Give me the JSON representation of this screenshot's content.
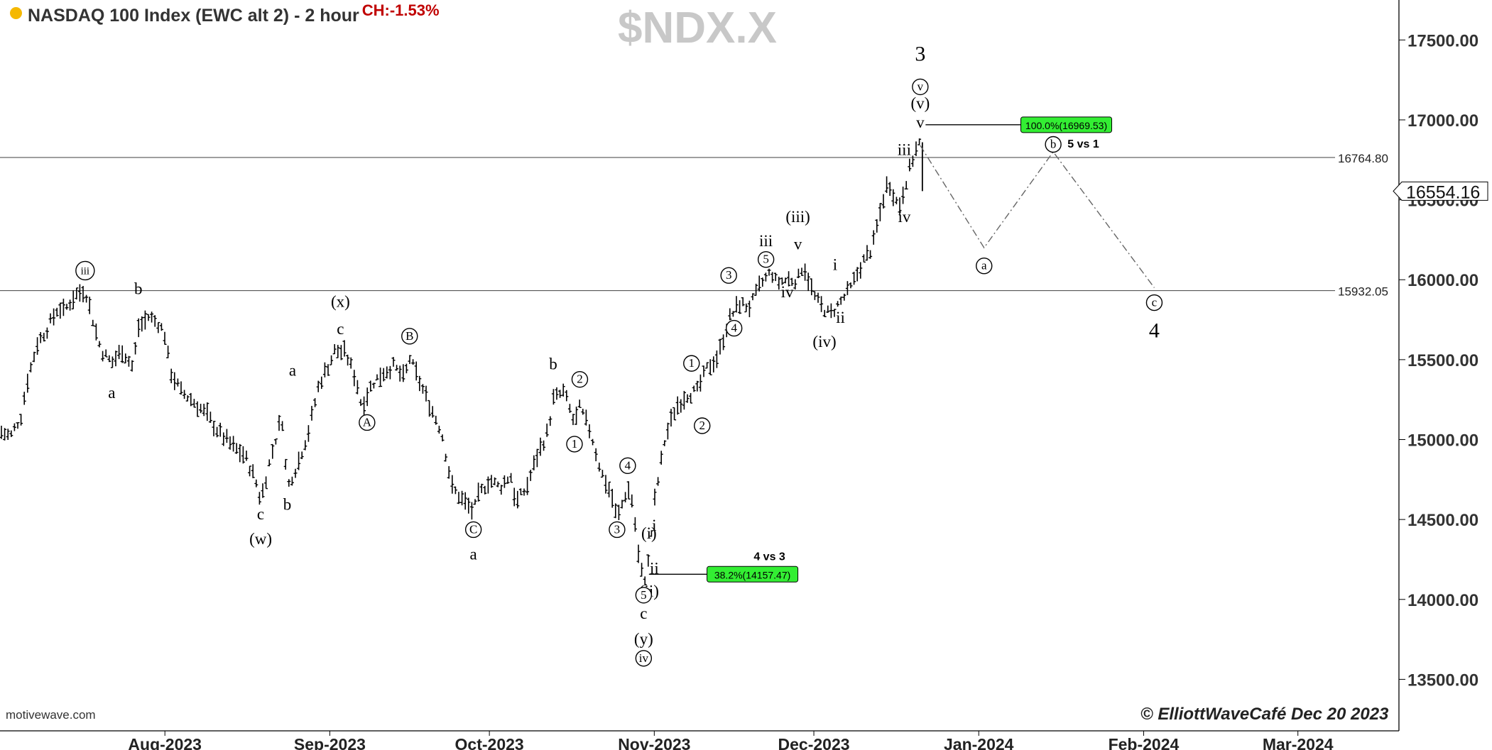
{
  "header": {
    "title": "NASDAQ 100 Index (EWC alt 2) - 2 hour",
    "change": "CH:-1.53%",
    "symbol": "$NDX.X",
    "source": "motivewave.com",
    "copyright": "© ElliottWaveCafé  Dec 20 2023"
  },
  "colors": {
    "price_bars": "#000000",
    "fib_box": "#33ee33",
    "change_text": "#c00000",
    "symbol_watermark": "#c8c8c8",
    "status_dot": "#f5b800"
  },
  "chart_data": {
    "type": "ohlc-bar",
    "title": "NASDAQ 100 Index (EWC alt 2) - 2 hour",
    "xlabel": "",
    "ylabel": "",
    "x_range": [
      "2023-07-01",
      "2024-03-20"
    ],
    "ylim": [
      13200,
      17750
    ],
    "y_ticks": [
      13500,
      14000,
      14500,
      15000,
      15500,
      16000,
      16500,
      17000,
      17500
    ],
    "y_tick_labels": [
      "13500.00",
      "14000.00",
      "14500.00",
      "15000.00",
      "15500.00",
      "16000.00",
      "16500.00",
      "17000.00",
      "17500.00"
    ],
    "x_ticks": [
      "2023-08-01",
      "2023-09-01",
      "2023-10-01",
      "2023-11-01",
      "2023-12-01",
      "2024-01-01",
      "2024-02-01",
      "2024-03-01"
    ],
    "x_tick_labels": [
      "Aug-2023",
      "Sep-2023",
      "Oct-2023",
      "Nov-2023",
      "Dec-2023",
      "Jan-2024",
      "Feb-2024",
      "Mar-2024"
    ],
    "grid": false,
    "price_path": [
      [
        "2023-07-01",
        15050
      ],
      [
        "2023-07-03",
        15020
      ],
      [
        "2023-07-05",
        15150
      ],
      [
        "2023-07-06",
        15350
      ],
      [
        "2023-07-08",
        15600
      ],
      [
        "2023-07-10",
        15700
      ],
      [
        "2023-07-12",
        15830
      ],
      [
        "2023-07-13",
        15800
      ],
      [
        "2023-07-15",
        15900
      ],
      [
        "2023-07-17",
        15940
      ],
      [
        "2023-07-19",
        15680
      ],
      [
        "2023-07-20",
        15560
      ],
      [
        "2023-07-22",
        15480
      ],
      [
        "2023-07-24",
        15560
      ],
      [
        "2023-07-26",
        15450
      ],
      [
        "2023-07-27",
        15700
      ],
      [
        "2023-07-29",
        15770
      ],
      [
        "2023-07-31",
        15720
      ],
      [
        "2023-08-01",
        15650
      ],
      [
        "2023-08-02",
        15430
      ],
      [
        "2023-08-04",
        15300
      ],
      [
        "2023-08-06",
        15250
      ],
      [
        "2023-08-09",
        15150
      ],
      [
        "2023-08-11",
        15050
      ],
      [
        "2023-08-14",
        14950
      ],
      [
        "2023-08-16",
        14900
      ],
      [
        "2023-08-18",
        14750
      ],
      [
        "2023-08-19",
        14620
      ],
      [
        "2023-08-21",
        14900
      ],
      [
        "2023-08-23",
        15150
      ],
      [
        "2023-08-24",
        14700
      ],
      [
        "2023-08-26",
        14850
      ],
      [
        "2023-08-28",
        15050
      ],
      [
        "2023-08-30",
        15350
      ],
      [
        "2023-09-01",
        15480
      ],
      [
        "2023-09-02",
        15560
      ],
      [
        "2023-09-04",
        15540
      ],
      [
        "2023-09-06",
        15370
      ],
      [
        "2023-09-07",
        15210
      ],
      [
        "2023-09-09",
        15350
      ],
      [
        "2023-09-11",
        15420
      ],
      [
        "2023-09-13",
        15460
      ],
      [
        "2023-09-15",
        15380
      ],
      [
        "2023-09-16",
        15510
      ],
      [
        "2023-09-18",
        15350
      ],
      [
        "2023-09-20",
        15200
      ],
      [
        "2023-09-22",
        15050
      ],
      [
        "2023-09-24",
        14700
      ],
      [
        "2023-09-26",
        14620
      ],
      [
        "2023-09-28",
        14550
      ],
      [
        "2023-09-29",
        14650
      ],
      [
        "2023-10-01",
        14750
      ],
      [
        "2023-10-03",
        14700
      ],
      [
        "2023-10-05",
        14780
      ],
      [
        "2023-10-06",
        14600
      ],
      [
        "2023-10-08",
        14700
      ],
      [
        "2023-10-10",
        14900
      ],
      [
        "2023-10-12",
        15050
      ],
      [
        "2023-10-13",
        15250
      ],
      [
        "2023-10-15",
        15300
      ],
      [
        "2023-10-17",
        15100
      ],
      [
        "2023-10-18",
        15200
      ],
      [
        "2023-10-20",
        15050
      ],
      [
        "2023-10-22",
        14800
      ],
      [
        "2023-10-24",
        14650
      ],
      [
        "2023-10-25",
        14500
      ],
      [
        "2023-10-27",
        14700
      ],
      [
        "2023-10-28",
        14600
      ],
      [
        "2023-10-29",
        14280
      ],
      [
        "2023-10-30",
        14100
      ],
      [
        "2023-10-31",
        14250
      ],
      [
        "2023-11-01",
        14600
      ],
      [
        "2023-11-03",
        15000
      ],
      [
        "2023-11-05",
        15200
      ],
      [
        "2023-11-07",
        15280
      ],
      [
        "2023-11-09",
        15300
      ],
      [
        "2023-11-11",
        15450
      ],
      [
        "2023-11-13",
        15520
      ],
      [
        "2023-11-15",
        15750
      ],
      [
        "2023-11-17",
        15850
      ],
      [
        "2023-11-19",
        15830
      ],
      [
        "2023-11-21",
        15970
      ],
      [
        "2023-11-23",
        16050
      ],
      [
        "2023-11-24",
        15980
      ],
      [
        "2023-11-26",
        16000
      ],
      [
        "2023-11-28",
        16000
      ],
      [
        "2023-11-29",
        16100
      ],
      [
        "2023-12-01",
        15900
      ],
      [
        "2023-12-02",
        15850
      ],
      [
        "2023-12-04",
        15780
      ],
      [
        "2023-12-06",
        15860
      ],
      [
        "2023-12-08",
        15950
      ],
      [
        "2023-12-10",
        16100
      ],
      [
        "2023-12-12",
        16200
      ],
      [
        "2023-12-14",
        16500
      ],
      [
        "2023-12-15",
        16620
      ],
      [
        "2023-12-17",
        16450
      ],
      [
        "2023-12-18",
        16580
      ],
      [
        "2023-12-20",
        16800
      ],
      [
        "2023-12-21",
        16860
      ],
      [
        "2023-12-21",
        16554
      ]
    ],
    "last_price": "16554.16",
    "horizontal_levels": [
      {
        "value": 16764.8,
        "label": "16764.80"
      },
      {
        "value": 15932.05,
        "label": "15932.05"
      }
    ],
    "fib_targets": [
      {
        "label": "100.0%(16969.53)",
        "value": 16969.53,
        "x_start": "2023-12-22",
        "x_end": "2024-01-26",
        "note": "5 vs 1"
      },
      {
        "label": "38.2%(14157.47)",
        "value": 14157.47,
        "x_start": "2023-10-31",
        "x_end": "2023-11-28",
        "note": "4 vs 3"
      }
    ],
    "projection_path": [
      [
        "2023-12-21",
        16840
      ],
      [
        "2024-01-02",
        16200
      ],
      [
        "2024-01-15",
        16800
      ],
      [
        "2024-02-03",
        15950
      ]
    ],
    "wave_labels": [
      {
        "text": "iii",
        "x": "2023-07-17",
        "y": 16030,
        "circled": true
      },
      {
        "text": "b",
        "x": "2023-07-27",
        "y": 15910,
        "circled": false
      },
      {
        "text": "a",
        "x": "2023-07-22",
        "y": 15260,
        "circled": false
      },
      {
        "text": "c",
        "x": "2023-08-19",
        "y": 14500,
        "circled": false
      },
      {
        "text": "(w)",
        "x": "2023-08-19",
        "y": 14345,
        "circled": false
      },
      {
        "text": "a",
        "x": "2023-08-25",
        "y": 15400,
        "circled": false
      },
      {
        "text": "b",
        "x": "2023-08-24",
        "y": 14560,
        "circled": false
      },
      {
        "text": "(x)",
        "x": "2023-09-03",
        "y": 15830,
        "circled": false
      },
      {
        "text": "c",
        "x": "2023-09-03",
        "y": 15660,
        "circled": false
      },
      {
        "text": "A",
        "x": "2023-09-08",
        "y": 15080,
        "circled": true
      },
      {
        "text": "B",
        "x": "2023-09-16",
        "y": 15620,
        "circled": true
      },
      {
        "text": "C",
        "x": "2023-09-28",
        "y": 14410,
        "circled": true
      },
      {
        "text": "a",
        "x": "2023-09-28",
        "y": 14250,
        "circled": false
      },
      {
        "text": "b",
        "x": "2023-10-13",
        "y": 15440,
        "circled": false
      },
      {
        "text": "1",
        "x": "2023-10-17",
        "y": 14945,
        "circled": true
      },
      {
        "text": "2",
        "x": "2023-10-18",
        "y": 15350,
        "circled": true
      },
      {
        "text": "3",
        "x": "2023-10-25",
        "y": 14410,
        "circled": true
      },
      {
        "text": "4",
        "x": "2023-10-27",
        "y": 14810,
        "circled": true
      },
      {
        "text": "(i)",
        "x": "2023-10-31",
        "y": 14380,
        "circled": false
      },
      {
        "text": "i",
        "x": "2023-11-01",
        "y": 14430,
        "circled": false
      },
      {
        "text": "ii",
        "x": "2023-11-01",
        "y": 14160,
        "circled": false
      },
      {
        "text": "(ii)",
        "x": "2023-10-31",
        "y": 14020,
        "circled": false
      },
      {
        "text": "5",
        "x": "2023-10-30",
        "y": 14000,
        "circled": true
      },
      {
        "text": "c",
        "x": "2023-10-30",
        "y": 13880,
        "circled": false
      },
      {
        "text": "(y)",
        "x": "2023-10-30",
        "y": 13720,
        "circled": false
      },
      {
        "text": "iv",
        "x": "2023-10-30",
        "y": 13605,
        "circled": true
      },
      {
        "text": "1",
        "x": "2023-11-08",
        "y": 15450,
        "circled": true
      },
      {
        "text": "2",
        "x": "2023-11-10",
        "y": 15060,
        "circled": true
      },
      {
        "text": "3",
        "x": "2023-11-15",
        "y": 16000,
        "circled": true
      },
      {
        "text": "4",
        "x": "2023-11-16",
        "y": 15670,
        "circled": true
      },
      {
        "text": "5",
        "x": "2023-11-22",
        "y": 16100,
        "circled": true
      },
      {
        "text": "iii",
        "x": "2023-11-22",
        "y": 16210,
        "circled": false
      },
      {
        "text": "iv",
        "x": "2023-11-26",
        "y": 15890,
        "circled": false
      },
      {
        "text": "(iii)",
        "x": "2023-11-28",
        "y": 16360,
        "circled": false
      },
      {
        "text": "v",
        "x": "2023-11-28",
        "y": 16190,
        "circled": false
      },
      {
        "text": "(iv)",
        "x": "2023-12-03",
        "y": 15580,
        "circled": false
      },
      {
        "text": "i",
        "x": "2023-12-05",
        "y": 16060,
        "circled": false
      },
      {
        "text": "ii",
        "x": "2023-12-06",
        "y": 15730,
        "circled": false
      },
      {
        "text": "iv",
        "x": "2023-12-18",
        "y": 16360,
        "circled": false
      },
      {
        "text": "iii",
        "x": "2023-12-18",
        "y": 16780,
        "circled": false
      },
      {
        "text": "v",
        "x": "2023-12-21",
        "y": 16950,
        "circled": false
      },
      {
        "text": "(v)",
        "x": "2023-12-21",
        "y": 17070,
        "circled": false
      },
      {
        "text": "v",
        "x": "2023-12-21",
        "y": 17180,
        "circled": true
      },
      {
        "text": "3",
        "x": "2023-12-21",
        "y": 17370,
        "circled": false,
        "large": true
      },
      {
        "text": "a",
        "x": "2024-01-02",
        "y": 16060,
        "circled": true
      },
      {
        "text": "b",
        "x": "2024-01-15",
        "y": 16820,
        "circled": true
      },
      {
        "text": "c",
        "x": "2024-02-03",
        "y": 15830,
        "circled": true
      },
      {
        "text": "4",
        "x": "2024-02-03",
        "y": 15640,
        "circled": false,
        "large": true
      }
    ]
  }
}
